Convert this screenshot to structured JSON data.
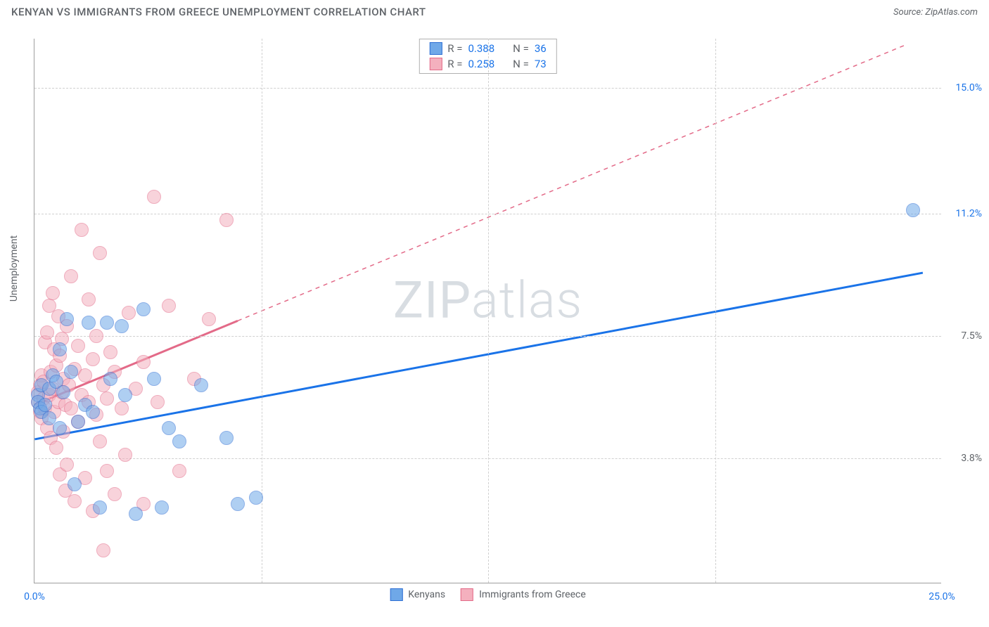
{
  "title": "KENYAN VS IMMIGRANTS FROM GREECE UNEMPLOYMENT CORRELATION CHART",
  "source_label": "Source: ZipAtlas.com",
  "watermark_a": "ZIP",
  "watermark_b": "atlas",
  "y_axis_title": "Unemployment",
  "chart": {
    "type": "scatter",
    "background_color": "#ffffff",
    "grid_color": "#d0d0d0",
    "axis_color": "#9e9e9e",
    "xlim": [
      0,
      25
    ],
    "ylim": [
      0,
      16.5
    ],
    "xticks": [
      {
        "pos": 0.0,
        "label": "0.0%",
        "color": "#1a73e8"
      },
      {
        "pos": 25.0,
        "label": "25.0%",
        "color": "#1a73e8"
      }
    ],
    "yticks": [
      {
        "pos": 3.8,
        "label": "3.8%",
        "color": "#5f6368"
      },
      {
        "pos": 7.5,
        "label": "7.5%",
        "color": "#5f6368"
      },
      {
        "pos": 11.2,
        "label": "11.2%",
        "color": "#1a73e8"
      },
      {
        "pos": 15.0,
        "label": "15.0%",
        "color": "#1a73e8"
      }
    ],
    "v_gridlines": [
      6.25,
      12.5,
      18.75
    ],
    "marker_radius": 10,
    "marker_opacity": 0.55,
    "line_width": 3,
    "series": [
      {
        "name": "Kenyans",
        "short": "blue",
        "color": "#6fa8e8",
        "stroke": "#2e6fd4",
        "r_value": "0.388",
        "n_value": "36",
        "trend": {
          "x1": 0.0,
          "y1": 4.35,
          "x2": 24.5,
          "y2": 9.4,
          "solid_until_x": 24.5,
          "line_color": "#1a73e8"
        },
        "points": [
          [
            0.1,
            5.7
          ],
          [
            0.1,
            5.5
          ],
          [
            0.15,
            5.3
          ],
          [
            0.2,
            5.2
          ],
          [
            0.2,
            6.0
          ],
          [
            0.3,
            5.4
          ],
          [
            0.4,
            5.9
          ],
          [
            0.4,
            5.0
          ],
          [
            0.5,
            6.3
          ],
          [
            0.6,
            6.1
          ],
          [
            0.7,
            7.1
          ],
          [
            0.7,
            4.7
          ],
          [
            0.8,
            5.8
          ],
          [
            0.9,
            8.0
          ],
          [
            1.0,
            6.4
          ],
          [
            1.1,
            3.0
          ],
          [
            1.2,
            4.9
          ],
          [
            1.4,
            5.4
          ],
          [
            1.5,
            7.9
          ],
          [
            1.6,
            5.2
          ],
          [
            1.8,
            2.3
          ],
          [
            2.0,
            7.9
          ],
          [
            2.1,
            6.2
          ],
          [
            2.4,
            7.8
          ],
          [
            2.5,
            5.7
          ],
          [
            2.8,
            2.1
          ],
          [
            3.0,
            8.3
          ],
          [
            3.3,
            6.2
          ],
          [
            3.5,
            2.3
          ],
          [
            3.7,
            4.7
          ],
          [
            4.0,
            4.3
          ],
          [
            4.6,
            6.0
          ],
          [
            5.3,
            4.4
          ],
          [
            5.6,
            2.4
          ],
          [
            6.1,
            2.6
          ],
          [
            24.2,
            11.3
          ]
        ]
      },
      {
        "name": "Immigrants from Greece",
        "short": "pink",
        "color": "#f4b0be",
        "stroke": "#e36a88",
        "r_value": "0.258",
        "n_value": "73",
        "trend": {
          "x1": 0.0,
          "y1": 5.4,
          "x2": 24.0,
          "y2": 16.3,
          "solid_until_x": 5.6,
          "line_color": "#e36a88"
        },
        "points": [
          [
            0.1,
            5.5
          ],
          [
            0.1,
            5.8
          ],
          [
            0.15,
            6.0
          ],
          [
            0.15,
            5.2
          ],
          [
            0.2,
            6.3
          ],
          [
            0.2,
            5.0
          ],
          [
            0.25,
            5.6
          ],
          [
            0.25,
            6.1
          ],
          [
            0.3,
            7.3
          ],
          [
            0.3,
            5.3
          ],
          [
            0.35,
            4.7
          ],
          [
            0.35,
            7.6
          ],
          [
            0.4,
            8.4
          ],
          [
            0.4,
            5.7
          ],
          [
            0.45,
            6.4
          ],
          [
            0.45,
            4.4
          ],
          [
            0.5,
            5.9
          ],
          [
            0.5,
            8.8
          ],
          [
            0.55,
            5.2
          ],
          [
            0.55,
            7.1
          ],
          [
            0.6,
            6.6
          ],
          [
            0.6,
            4.1
          ],
          [
            0.65,
            5.5
          ],
          [
            0.65,
            8.1
          ],
          [
            0.7,
            3.3
          ],
          [
            0.7,
            6.9
          ],
          [
            0.75,
            5.8
          ],
          [
            0.75,
            7.4
          ],
          [
            0.8,
            4.6
          ],
          [
            0.8,
            6.2
          ],
          [
            0.85,
            2.8
          ],
          [
            0.85,
            5.4
          ],
          [
            0.9,
            7.8
          ],
          [
            0.9,
            3.6
          ],
          [
            0.95,
            6.0
          ],
          [
            1.0,
            5.3
          ],
          [
            1.0,
            9.3
          ],
          [
            1.1,
            2.5
          ],
          [
            1.1,
            6.5
          ],
          [
            1.2,
            4.9
          ],
          [
            1.2,
            7.2
          ],
          [
            1.3,
            5.7
          ],
          [
            1.3,
            10.7
          ],
          [
            1.4,
            3.2
          ],
          [
            1.4,
            6.3
          ],
          [
            1.5,
            5.5
          ],
          [
            1.5,
            8.6
          ],
          [
            1.6,
            2.2
          ],
          [
            1.6,
            6.8
          ],
          [
            1.7,
            5.1
          ],
          [
            1.7,
            7.5
          ],
          [
            1.8,
            4.3
          ],
          [
            1.8,
            10.0
          ],
          [
            1.9,
            6.0
          ],
          [
            2.0,
            3.4
          ],
          [
            2.0,
            5.6
          ],
          [
            2.1,
            7.0
          ],
          [
            2.2,
            2.7
          ],
          [
            2.2,
            6.4
          ],
          [
            2.4,
            5.3
          ],
          [
            2.5,
            3.9
          ],
          [
            2.6,
            8.2
          ],
          [
            2.8,
            5.9
          ],
          [
            3.0,
            2.4
          ],
          [
            3.0,
            6.7
          ],
          [
            3.3,
            11.7
          ],
          [
            3.4,
            5.5
          ],
          [
            3.7,
            8.4
          ],
          [
            4.0,
            3.4
          ],
          [
            4.4,
            6.2
          ],
          [
            4.8,
            8.0
          ],
          [
            5.3,
            11.0
          ],
          [
            1.9,
            1.0
          ]
        ]
      }
    ]
  },
  "legend_top": {
    "r_label": "R =",
    "n_label": "N ="
  },
  "legend_bottom_labels": [
    "Kenyans",
    "Immigrants from Greece"
  ]
}
